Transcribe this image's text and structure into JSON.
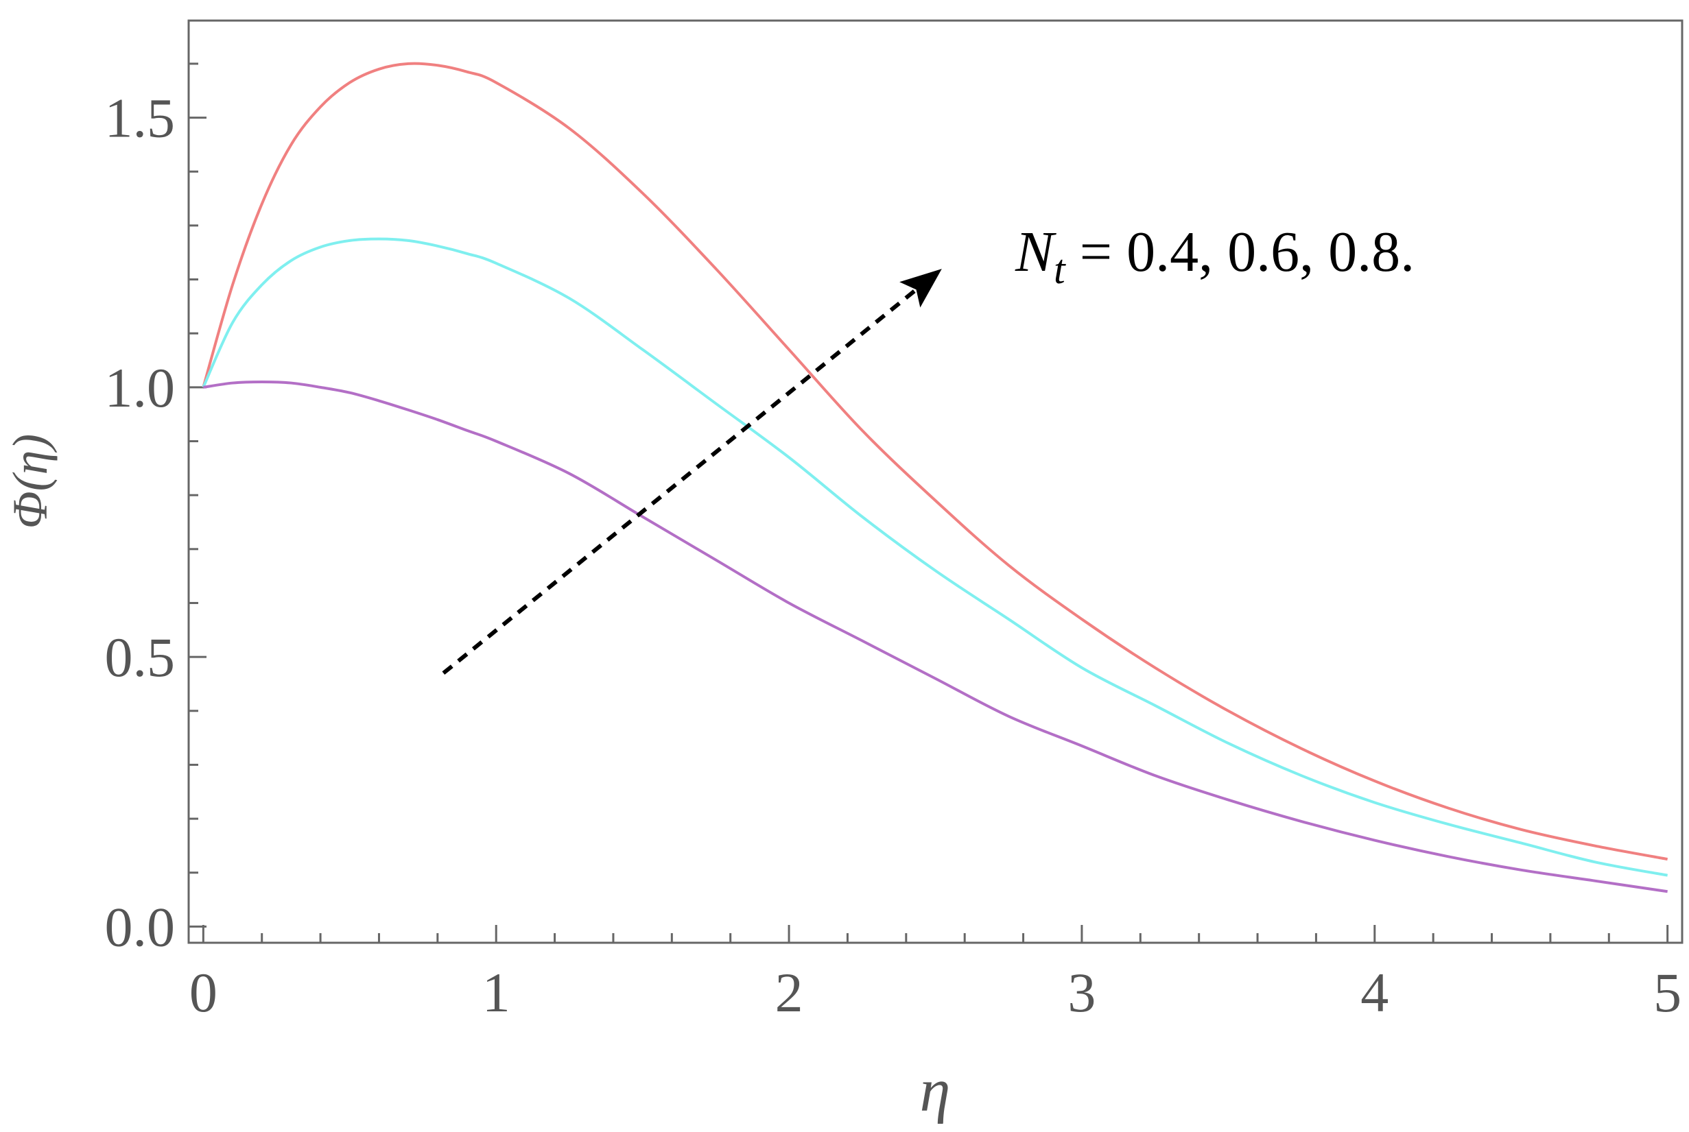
{
  "chart_data": {
    "type": "line",
    "xlabel": "η",
    "ylabel": "Φ(η)",
    "xlim": [
      -0.05,
      5.05
    ],
    "ylim": [
      -0.03,
      1.68
    ],
    "x_ticks": [
      "0",
      "1",
      "2",
      "3",
      "4",
      "5"
    ],
    "y_ticks": [
      "0.0",
      "0.5",
      "1.0",
      "1.5"
    ],
    "grid": false,
    "annotation": {
      "symbol": "N",
      "subscript": "t",
      "text": " = 0.4, 0.6, 0.8.",
      "arrow_from": [
        0.82,
        0.47
      ],
      "arrow_to": [
        2.5,
        1.21
      ]
    },
    "series": [
      {
        "color": "#f08080",
        "x": [
          0,
          0.1,
          0.2,
          0.3,
          0.4,
          0.5,
          0.6,
          0.7,
          0.8,
          0.9,
          1.0,
          1.25,
          1.5,
          1.75,
          2.0,
          2.25,
          2.5,
          2.75,
          3.0,
          3.25,
          3.5,
          3.75,
          4.0,
          4.25,
          4.5,
          4.75,
          5.0
        ],
        "y": [
          1.0,
          1.19,
          1.34,
          1.45,
          1.52,
          1.565,
          1.59,
          1.6,
          1.597,
          1.585,
          1.565,
          1.48,
          1.36,
          1.22,
          1.07,
          0.92,
          0.79,
          0.67,
          0.57,
          0.48,
          0.4,
          0.33,
          0.27,
          0.22,
          0.18,
          0.15,
          0.125
        ]
      },
      {
        "color": "#7fefef",
        "x": [
          0,
          0.1,
          0.2,
          0.3,
          0.4,
          0.5,
          0.6,
          0.7,
          0.8,
          0.9,
          1.0,
          1.25,
          1.5,
          1.75,
          2.0,
          2.25,
          2.5,
          2.75,
          3.0,
          3.25,
          3.5,
          3.75,
          4.0,
          4.25,
          4.5,
          4.75,
          5.0
        ],
        "y": [
          1.0,
          1.12,
          1.19,
          1.235,
          1.26,
          1.272,
          1.275,
          1.272,
          1.262,
          1.248,
          1.23,
          1.165,
          1.07,
          0.97,
          0.87,
          0.76,
          0.66,
          0.57,
          0.48,
          0.41,
          0.34,
          0.28,
          0.23,
          0.19,
          0.155,
          0.12,
          0.095
        ]
      },
      {
        "color": "#b36fc6",
        "x": [
          0,
          0.1,
          0.2,
          0.3,
          0.4,
          0.5,
          0.6,
          0.7,
          0.8,
          0.9,
          1.0,
          1.25,
          1.5,
          1.75,
          2.0,
          2.25,
          2.5,
          2.75,
          3.0,
          3.25,
          3.5,
          3.75,
          4.0,
          4.25,
          4.5,
          4.75,
          5.0
        ],
        "y": [
          1.0,
          1.008,
          1.01,
          1.008,
          1.0,
          0.99,
          0.975,
          0.958,
          0.94,
          0.92,
          0.9,
          0.84,
          0.76,
          0.68,
          0.6,
          0.53,
          0.46,
          0.39,
          0.335,
          0.28,
          0.235,
          0.195,
          0.16,
          0.13,
          0.105,
          0.085,
          0.065
        ]
      }
    ]
  }
}
